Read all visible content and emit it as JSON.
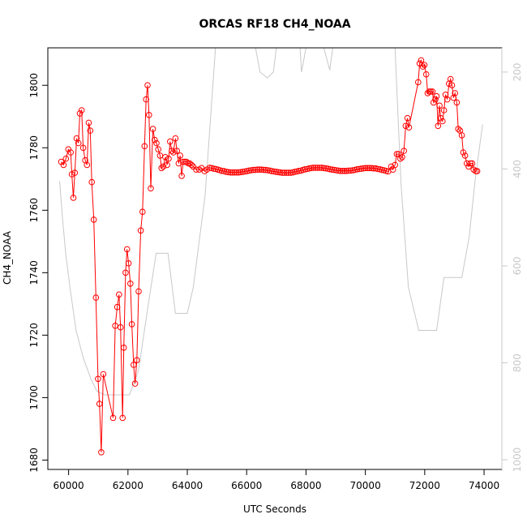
{
  "chart_data": {
    "type": "line",
    "title": "ORCAS RF18 CH4_NOAA",
    "xlabel": "UTC Seconds",
    "ylabel": "CH4_NOAA",
    "xlim": [
      59300,
      74600
    ],
    "ylim": [
      1677,
      1812
    ],
    "x_ticks": [
      {
        "value": 60000,
        "label": "60000"
      },
      {
        "value": 62000,
        "label": "62000"
      },
      {
        "value": 64000,
        "label": "64000"
      },
      {
        "value": 66000,
        "label": "66000"
      },
      {
        "value": 68000,
        "label": "68000"
      },
      {
        "value": 70000,
        "label": "70000"
      },
      {
        "value": 72000,
        "label": "72000"
      },
      {
        "value": 74000,
        "label": "74000"
      }
    ],
    "y_ticks": [
      {
        "value": 1680,
        "label": "1680"
      },
      {
        "value": 1700,
        "label": "1700"
      },
      {
        "value": 1720,
        "label": "1720"
      },
      {
        "value": 1740,
        "label": "1740"
      },
      {
        "value": 1760,
        "label": "1760"
      },
      {
        "value": 1780,
        "label": "1780"
      },
      {
        "value": 1800,
        "label": "1800"
      }
    ],
    "right_axis": {
      "label": "",
      "ylim": [
        1020,
        150
      ],
      "ticks": [
        {
          "value": 200,
          "label": "200"
        },
        {
          "value": 400,
          "label": "400"
        },
        {
          "value": 600,
          "label": "600"
        },
        {
          "value": 800,
          "label": "800"
        },
        {
          "value": 1000,
          "label": "1000"
        }
      ]
    },
    "series": [
      {
        "name": "CH4_NOAA",
        "color": "#ff0000",
        "marker": "open-circle",
        "points": [
          [
            59750,
            1775.5
          ],
          [
            59830,
            1774.5
          ],
          [
            59910,
            1776.5
          ],
          [
            59990,
            1779.5
          ],
          [
            60070,
            1778.5
          ],
          [
            60110,
            1771.5
          ],
          [
            60160,
            1764
          ],
          [
            60210,
            1772
          ],
          [
            60270,
            1783
          ],
          [
            60330,
            1781.5
          ],
          [
            60380,
            1791
          ],
          [
            60440,
            1792
          ],
          [
            60490,
            1780
          ],
          [
            60560,
            1776
          ],
          [
            60620,
            1774.5
          ],
          [
            60680,
            1788
          ],
          [
            60730,
            1785.5
          ],
          [
            60780,
            1769
          ],
          [
            60850,
            1757
          ],
          [
            60920,
            1732
          ],
          [
            60990,
            1706
          ],
          [
            61040,
            1698
          ],
          [
            61100,
            1682.5
          ],
          [
            61170,
            1707.5
          ],
          [
            61500,
            1693.5
          ],
          [
            61570,
            1723
          ],
          [
            61640,
            1729
          ],
          [
            61700,
            1733
          ],
          [
            61750,
            1722.5
          ],
          [
            61820,
            1693.5
          ],
          [
            61860,
            1716
          ],
          [
            61920,
            1740
          ],
          [
            61970,
            1747.5
          ],
          [
            62020,
            1743
          ],
          [
            62080,
            1736.5
          ],
          [
            62130,
            1723.5
          ],
          [
            62190,
            1710.5
          ],
          [
            62240,
            1704.5
          ],
          [
            62300,
            1712
          ],
          [
            62360,
            1734
          ],
          [
            62430,
            1753.5
          ],
          [
            62490,
            1759.5
          ],
          [
            62560,
            1780.5
          ],
          [
            62610,
            1795.5
          ],
          [
            62660,
            1800
          ],
          [
            62710,
            1790.5
          ],
          [
            62770,
            1767
          ],
          [
            62840,
            1786
          ],
          [
            62900,
            1782.5
          ],
          [
            62960,
            1781.5
          ],
          [
            63020,
            1779.5
          ],
          [
            63080,
            1777.5
          ],
          [
            63130,
            1773.5
          ],
          [
            63190,
            1774
          ],
          [
            63260,
            1777
          ],
          [
            63320,
            1774.5
          ],
          [
            63370,
            1776.5
          ],
          [
            63420,
            1782
          ],
          [
            63480,
            1779
          ],
          [
            63530,
            1778.5
          ],
          [
            63600,
            1783
          ],
          [
            63650,
            1779
          ],
          [
            63710,
            1775
          ],
          [
            63760,
            1777.5
          ],
          [
            63810,
            1771
          ],
          [
            63860,
            1775.5
          ],
          [
            63920,
            1775.5
          ],
          [
            63970,
            1775.5
          ],
          [
            64030,
            1775
          ],
          [
            64080,
            1775
          ],
          [
            64140,
            1774.5
          ],
          [
            64200,
            1774
          ],
          [
            64300,
            1773
          ],
          [
            64400,
            1773
          ],
          [
            64480,
            1773.5
          ],
          [
            64580,
            1772.5
          ],
          [
            64660,
            1773
          ]
        ]
      }
    ]
  }
}
